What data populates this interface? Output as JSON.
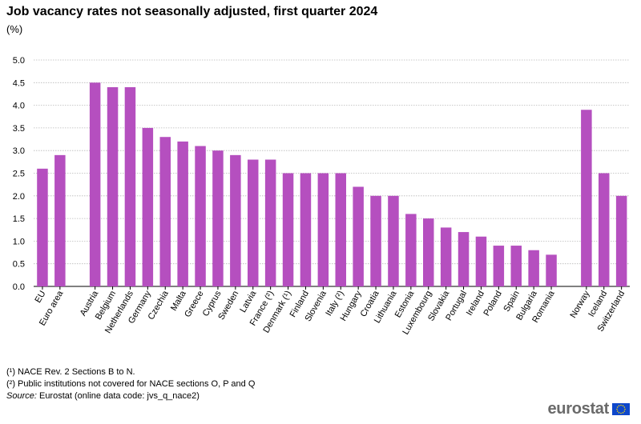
{
  "chart_data": {
    "type": "bar",
    "title": "Job vacancy rates not seasonally adjusted, first quarter 2024",
    "subtitle": "(%)",
    "ylim": [
      0,
      5.0
    ],
    "yticks": [
      "0.0",
      "0.5",
      "1.0",
      "1.5",
      "2.0",
      "2.5",
      "3.0",
      "3.5",
      "4.0",
      "4.5",
      "5.0"
    ],
    "grid": true,
    "bar_color": "#b54fbf",
    "groups": [
      {
        "categories": [
          "EU",
          "Euro area"
        ],
        "values": [
          2.6,
          2.9
        ]
      },
      {
        "categories": [
          "Austria",
          "Belgium",
          "Netherlands",
          "Germany",
          "Czechia",
          "Malta",
          "Greece",
          "Cyprus",
          "Sweden",
          "Latvia",
          "France (²)",
          "Denmark (¹)",
          "Finland",
          "Slovenia",
          "Italy (²)",
          "Hungary",
          "Croatia",
          "Lithuania",
          "Estonia",
          "Luxembourg",
          "Slovakia",
          "Portugal",
          "Ireland",
          "Poland",
          "Spain",
          "Bulgaria",
          "Romania"
        ],
        "values": [
          4.5,
          4.4,
          4.4,
          3.5,
          3.3,
          3.2,
          3.1,
          3.0,
          2.9,
          2.8,
          2.8,
          2.5,
          2.5,
          2.5,
          2.5,
          2.2,
          2.0,
          2.0,
          1.6,
          1.5,
          1.3,
          1.2,
          1.1,
          0.9,
          0.9,
          0.8,
          0.7
        ]
      },
      {
        "categories": [
          "Norway",
          "Iceland",
          "Switzerland"
        ],
        "values": [
          3.9,
          2.5,
          2.0
        ]
      }
    ]
  },
  "footnotes": {
    "note1": "(¹) NACE Rev. 2 Sections B to N.",
    "note2": "(²) Public institutions not covered for NACE sections O, P and Q",
    "source_label": "Source:",
    "source_text": " Eurostat (online data code: jvs_q_nace2)"
  },
  "logo": {
    "text": "eurostat",
    "flag_color": "#0e47cb",
    "star_color": "#ffdd00"
  }
}
